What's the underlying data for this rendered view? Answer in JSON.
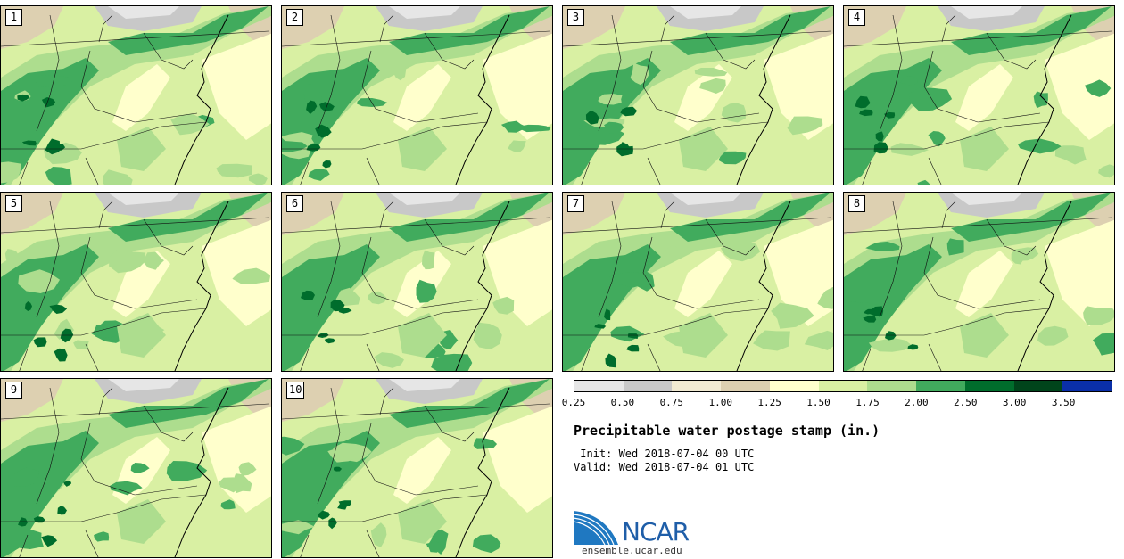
{
  "panels": [
    {
      "label": "1"
    },
    {
      "label": "2"
    },
    {
      "label": "3"
    },
    {
      "label": "4"
    },
    {
      "label": "5"
    },
    {
      "label": "6"
    },
    {
      "label": "7"
    },
    {
      "label": "8"
    },
    {
      "label": "9"
    },
    {
      "label": "10"
    }
  ],
  "colorbar": {
    "colors": [
      "#e6e6e6",
      "#c8c8c8",
      "#f1ead2",
      "#ddd0b1",
      "#ffffcc",
      "#d9f0a3",
      "#addd8e",
      "#41ab5d",
      "#006d2c",
      "#00441b",
      "#0a2fa8"
    ],
    "ticks": [
      "0.25",
      "0.50",
      "0.75",
      "1.00",
      "1.25",
      "1.50",
      "1.75",
      "2.00",
      "2.50",
      "3.00",
      "3.50"
    ]
  },
  "title": "Precipitable water postage stamp (in.)",
  "init_line": " Init: Wed 2018-07-04 00 UTC",
  "valid_line": "Valid: Wed 2018-07-04 01 UTC",
  "logo": {
    "text": "NCAR",
    "brand_color": "#1f5ea8"
  },
  "site_url": "ensemble.ucar.edu"
}
